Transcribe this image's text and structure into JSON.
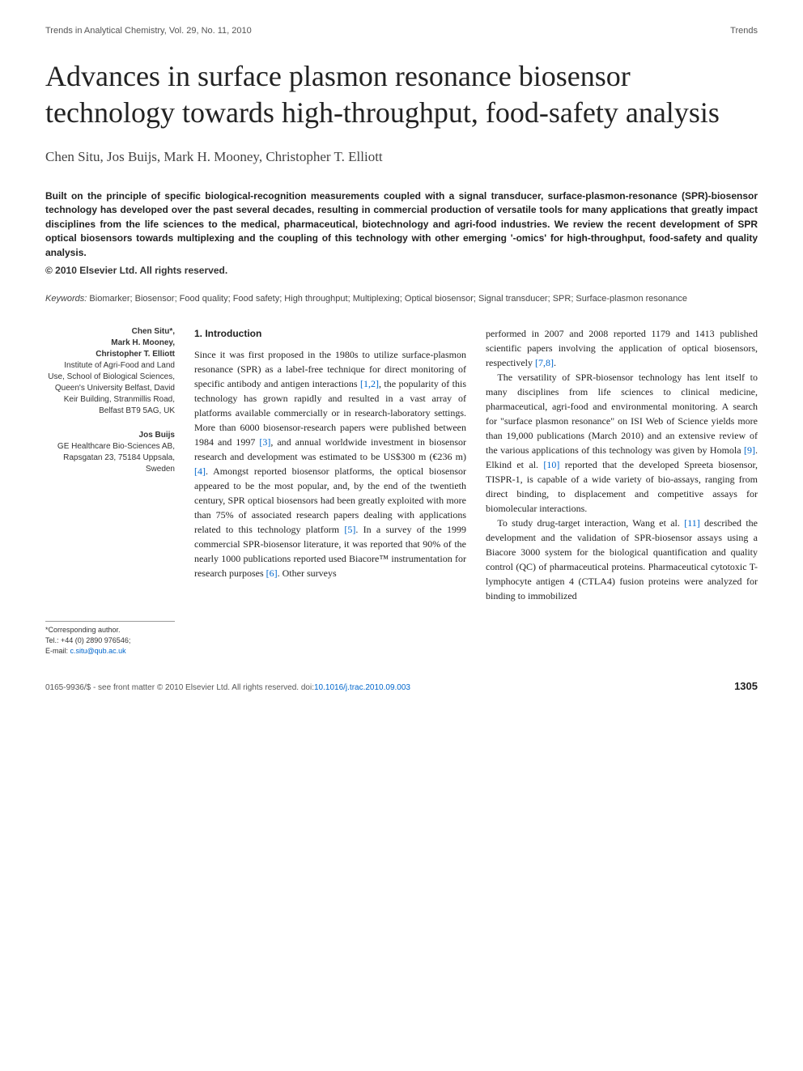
{
  "header": {
    "journal_left": "Trends in Analytical Chemistry, Vol. 29, No. 11, 2010",
    "journal_right": "Trends"
  },
  "title": "Advances in surface plasmon resonance biosensor technology towards high-throughput, food-safety analysis",
  "authors": "Chen Situ, Jos Buijs, Mark H. Mooney, Christopher T. Elliott",
  "abstract": "Built on the principle of specific biological-recognition measurements coupled with a signal transducer, surface-plasmon-resonance (SPR)-biosensor technology has developed over the past several decades, resulting in commercial production of versatile tools for many applications that greatly impact disciplines from the life sciences to the medical, pharmaceutical, biotechnology and agri-food industries. We review the recent development of SPR optical biosensors towards multiplexing and the coupling of this technology with other emerging '-omics' for high-throughput, food-safety and quality analysis.",
  "copyright": "© 2010 Elsevier Ltd. All rights reserved.",
  "keywords_label": "Keywords:",
  "keywords": " Biomarker; Biosensor; Food quality; Food safety; High throughput; Multiplexing; Optical biosensor; Signal transducer; SPR; Surface-plasmon resonance",
  "affiliations": {
    "block1": {
      "names": "Chen Situ*,\nMark H. Mooney,\nChristopher T. Elliott",
      "addr": "Institute of Agri-Food and Land Use, School of Biological Sciences, Queen's University Belfast, David Keir Building, Stranmillis Road, Belfast BT9 5AG, UK"
    },
    "block2": {
      "names": "Jos Buijs",
      "addr": "GE Healthcare Bio-Sciences AB, Rapsgatan 23, 75184 Uppsala, Sweden"
    }
  },
  "corresponding": {
    "label": "*Corresponding author.",
    "tel": "Tel.: +44 (0) 2890 976546;",
    "email_label": "E-mail: ",
    "email": "c.situ@qub.ac.uk"
  },
  "section": {
    "heading": "1. Introduction",
    "col1_p1a": "Since it was first proposed in the 1980s to utilize surface-plasmon resonance (SPR) as a label-free technique for direct monitoring of specific antibody and antigen interactions ",
    "ref12": "[1,2]",
    "col1_p1b": ", the popularity of this technology has grown rapidly and resulted in a vast array of platforms available commercially or in research-laboratory settings. More than 6000 biosensor-research papers were published between 1984 and 1997 ",
    "ref3": "[3]",
    "col1_p1c": ", and annual worldwide investment in biosensor research and development was estimated to be US$300 m (€236 m) ",
    "ref4": "[4]",
    "col1_p1d": ". Amongst reported biosensor platforms, the optical biosensor appeared to be the most popular, and, by the end of the twentieth century, SPR optical biosensors had been greatly exploited with more than 75% of associated research papers dealing with applications related to this technology platform ",
    "ref5": "[5]",
    "col1_p1e": ". In a survey of the 1999 commercial SPR-biosensor literature, it was reported that 90% of the nearly 1000 publications reported used Biacore™ instrumentation for research purposes ",
    "ref6": "[6]",
    "col1_p1f": ". Other surveys ",
    "col2_p1a": "performed in 2007 and 2008 reported 1179 and 1413 published scientific papers involving the application of optical biosensors, respectively ",
    "ref78": "[7,8]",
    "col2_p1b": ".",
    "col2_p2a": "The versatility of SPR-biosensor technology has lent itself to many disciplines from life sciences to clinical medicine, pharmaceutical, agri-food and environmental monitoring. A search for \"surface plasmon resonance\" on ISI Web of Science yields more than 19,000 publications (March 2010) and an extensive review of the various applications of this technology was given by Homola ",
    "ref9": "[9]",
    "col2_p2b": ". Elkind et al. ",
    "ref10": "[10]",
    "col2_p2c": " reported that the developed Spreeta biosensor, TISPR-1, is capable of a wide variety of bio-assays, ranging from direct binding, to displacement and competitive assays for biomolecular interactions.",
    "col2_p3a": "To study drug-target interaction, Wang et al. ",
    "ref11": "[11]",
    "col2_p3b": " described the development and the validation of SPR-biosensor assays using a Biacore 3000 system for the biological quantification and quality control (QC) of pharmaceutical proteins. Pharmaceutical cytotoxic T-lymphocyte antigen 4 (CTLA4) fusion proteins were analyzed for binding to immobilized"
  },
  "footer": {
    "issn": "0165-9936/$ - see front matter © 2010 Elsevier Ltd. All rights reserved. doi:",
    "doi": "10.1016/j.trac.2010.09.003",
    "page": "1305"
  },
  "colors": {
    "link": "#0066cc",
    "text": "#222222",
    "muted": "#555555",
    "background": "#ffffff"
  }
}
